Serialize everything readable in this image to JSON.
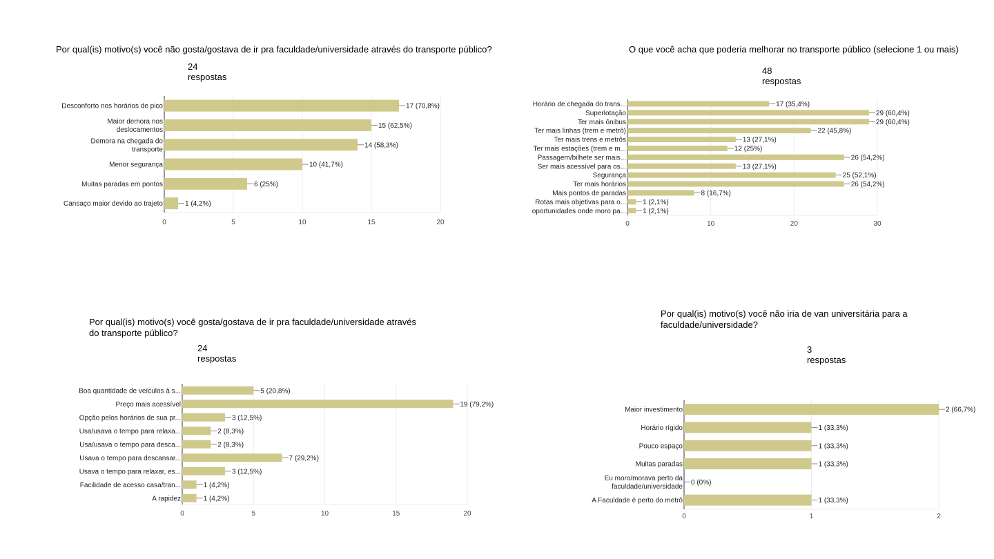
{
  "charts": [
    {
      "question": "Por qual(is) motivo(s) você não gosta/gostava de ir pra faculdade/universidade através do transporte público?",
      "responses": "24 respostas",
      "chart_data": {
        "type": "bar",
        "orientation": "horizontal",
        "categories": [
          [
            "Desconforto nos horários de pico"
          ],
          [
            "Maior demora nos",
            "deslocamentos"
          ],
          [
            "Demora na chegada do",
            "transporte"
          ],
          [
            "Menor segurança"
          ],
          [
            "Muitas paradas em pontos"
          ],
          [
            "Cansaço maior devido ao trajeto"
          ]
        ],
        "values": [
          17,
          15,
          14,
          10,
          6,
          1
        ],
        "value_labels": [
          "17 (70,8%)",
          "15 (62,5%)",
          "14 (58,3%)",
          "10 (41,7%)",
          "6 (25%)",
          "1 (4,2%)"
        ],
        "xlim": [
          0,
          20
        ],
        "xticks": [
          0,
          5,
          10,
          15,
          20
        ],
        "bar_color": "#cfc98c"
      }
    },
    {
      "question": "O que você acha que poderia melhorar no transporte público (selecione 1 ou mais)",
      "responses": "48 respostas",
      "chart_data": {
        "type": "bar",
        "orientation": "horizontal",
        "categories": [
          [
            "Horário de chegada do trans..."
          ],
          [
            "Superlotação"
          ],
          [
            "Ter mais ônibus"
          ],
          [
            "Ter mais linhas (trem e metrô)"
          ],
          [
            "Ter mais trens e metrôs"
          ],
          [
            "Ter mais estações (trem e m..."
          ],
          [
            "Passagem/bilhete ser mais..."
          ],
          [
            "Ser mais acessível para os..."
          ],
          [
            "Segurança"
          ],
          [
            "Ter mais horários"
          ],
          [
            "Mais pontos de paradas"
          ],
          [
            "Rotas mais objetivas para o..."
          ],
          [
            "oportunidades onde moro pa..."
          ]
        ],
        "values": [
          17,
          29,
          29,
          22,
          13,
          12,
          26,
          13,
          25,
          26,
          8,
          1,
          1
        ],
        "value_labels": [
          "17 (35,4%)",
          "29 (60,4%)",
          "29 (60,4%)",
          "22 (45,8%)",
          "13 (27,1%)",
          "12 (25%)",
          "26 (54,2%)",
          "13 (27,1%)",
          "25 (52,1%)",
          "26 (54,2%)",
          "8 (16,7%)",
          "1 (2,1%)",
          "1 (2,1%)"
        ],
        "xlim": [
          0,
          30
        ],
        "xticks": [
          0,
          10,
          20,
          30
        ],
        "bar_color": "#cfc98c"
      }
    },
    {
      "question": "Por qual(is) motivo(s) você gosta/gostava de ir pra faculdade/universidade através do transporte público?",
      "responses": "24 respostas",
      "chart_data": {
        "type": "bar",
        "orientation": "horizontal",
        "categories": [
          [
            "Boa quantidade de veículos à s..."
          ],
          [
            "Preço mais acessível"
          ],
          [
            "Opção pelos horários de sua pr..."
          ],
          [
            "Usa/usava o tempo para relaxa..."
          ],
          [
            "Usa/usava o tempo para desca..."
          ],
          [
            "Usava o tempo para descansar..."
          ],
          [
            "Usava o tempo para relaxar, es..."
          ],
          [
            "Facilidade de acesso casa/tran..."
          ],
          [
            "A rapidez"
          ]
        ],
        "values": [
          5,
          19,
          3,
          2,
          2,
          7,
          3,
          1,
          1
        ],
        "value_labels": [
          "5 (20,8%)",
          "19 (79,2%)",
          "3 (12,5%)",
          "2 (8,3%)",
          "2 (8,3%)",
          "7 (29,2%)",
          "3 (12,5%)",
          "1 (4,2%)",
          "1 (4,2%)"
        ],
        "xlim": [
          0,
          20
        ],
        "xticks": [
          0,
          5,
          10,
          15,
          20
        ],
        "bar_color": "#cfc98c"
      }
    },
    {
      "question": "Por qual(is) motivo(s) você não iria de van universitária para a faculdade/universidade?",
      "responses": "3 respostas",
      "chart_data": {
        "type": "bar",
        "orientation": "horizontal",
        "categories": [
          [
            "Maior investimento"
          ],
          [
            "Horário rígido"
          ],
          [
            "Pouco espaço"
          ],
          [
            "Muitas paradas"
          ],
          [
            "Eu moro/morava perto da",
            "faculdade/universidade"
          ],
          [
            "A Faculdade é perto do metrô"
          ]
        ],
        "values": [
          2,
          1,
          1,
          1,
          0,
          1
        ],
        "value_labels": [
          "2 (66,7%)",
          "1 (33,3%)",
          "1 (33,3%)",
          "1 (33,3%)",
          "0 (0%)",
          "1 (33,3%)"
        ],
        "xlim": [
          0,
          2
        ],
        "xticks": [
          0,
          1,
          2
        ],
        "bar_color": "#cfc98c"
      }
    }
  ]
}
